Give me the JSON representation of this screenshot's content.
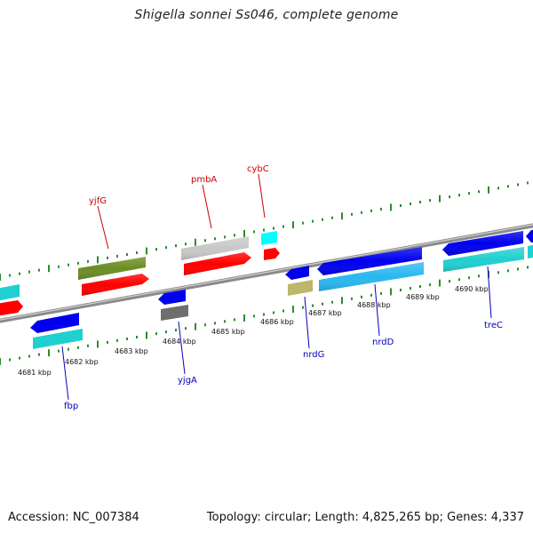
{
  "title": "Shigella sonnei Ss046, complete genome",
  "footer": {
    "accession": "Accession: NC_007384",
    "summary": "Topology: circular; Length: 4,825,265 bp; Genes: 4,337"
  },
  "colors": {
    "backbone": "#8a8a8a",
    "tick": "#2e8b2e",
    "label_forward": "#cc0000",
    "label_reverse": "#0000bb"
  },
  "scale_labels": [
    "4681 kbp",
    "4682 kbp",
    "4683 kbp",
    "4684 kbp",
    "4685 kbp",
    "4686 kbp",
    "4687 kbp",
    "4688 kbp",
    "4689 kbp",
    "4690 kbp"
  ],
  "genes_forward_labeled": [
    {
      "name": "yjfG",
      "color": "#6b8e23"
    },
    {
      "name": "pmbA",
      "color": "#c8c8c8"
    },
    {
      "name": "cybC",
      "color": "#00ffff"
    }
  ],
  "genes_reverse_labeled": [
    {
      "name": "fbp",
      "color": "#0000ee"
    },
    {
      "name": "yjgA",
      "color": "#0000ee"
    },
    {
      "name": "nrdG",
      "color": "#0000ee"
    },
    {
      "name": "nrdD",
      "color": "#0000ee"
    },
    {
      "name": "treC",
      "color": "#0000ee"
    }
  ]
}
